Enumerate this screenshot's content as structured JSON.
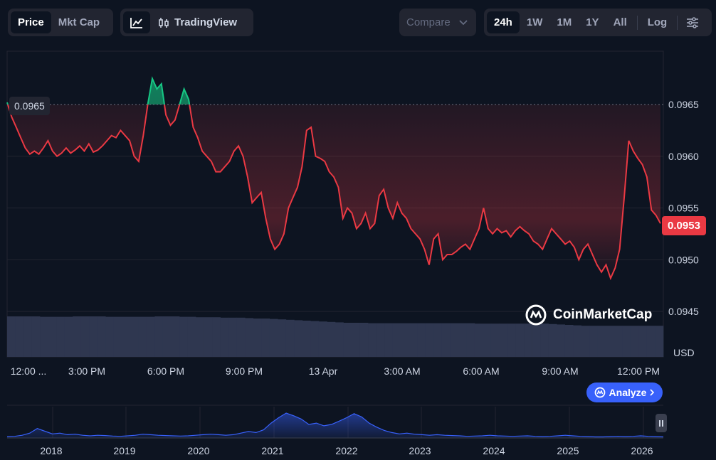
{
  "toolbar": {
    "metric_tabs": [
      "Price",
      "Mkt Cap"
    ],
    "tradingview_label": "TradingView",
    "compare_label": "Compare",
    "range_tabs": [
      "24h",
      "1W",
      "1M",
      "1Y",
      "All"
    ],
    "log_label": "Log",
    "active_metric": "Price",
    "active_range": "24h"
  },
  "chart_data": {
    "type": "line",
    "y_ticks": [
      "0.0965",
      "0.0960",
      "0.0955",
      "0.0950",
      "0.0945"
    ],
    "ylim": [
      0.0945,
      0.0965
    ],
    "currency": "USD",
    "reference_price": "0.0965",
    "current_price": "0.0953",
    "x_ticks": [
      "12:00 ...",
      "3:00 PM",
      "6:00 PM",
      "9:00 PM",
      "13 Apr",
      "3:00 AM",
      "6:00 AM",
      "9:00 AM",
      "12:00 PM"
    ],
    "colors": {
      "down": "#ea3943",
      "up": "#16c784",
      "volume": "#2f3750",
      "navigator": "#3861fb"
    },
    "series": [
      {
        "values": [
          0.09652,
          0.09638,
          0.09628,
          0.09618,
          0.09608,
          0.09602,
          0.09605,
          0.09602,
          0.09608,
          0.09615,
          0.09605,
          0.096,
          0.09603,
          0.09608,
          0.09603,
          0.09606,
          0.0961,
          0.09605,
          0.09612,
          0.09604,
          0.09606,
          0.0961,
          0.09615,
          0.0962,
          0.09618,
          0.09625,
          0.0962,
          0.09615,
          0.096,
          0.09595,
          0.0962,
          0.0965,
          0.09675,
          0.09665,
          0.0967,
          0.0964,
          0.0963,
          0.09635,
          0.0965,
          0.09665,
          0.09655,
          0.09628,
          0.09618,
          0.09605,
          0.096,
          0.09595,
          0.09585,
          0.09585,
          0.0959,
          0.09595,
          0.09605,
          0.0961,
          0.096,
          0.0958,
          0.09555,
          0.0956,
          0.09565,
          0.0954,
          0.0952,
          0.0951,
          0.09515,
          0.09525,
          0.0955,
          0.0956,
          0.0957,
          0.0959,
          0.09625,
          0.09628,
          0.096,
          0.09598,
          0.09595,
          0.09585,
          0.0958,
          0.0957,
          0.0954,
          0.0955,
          0.09545,
          0.0953,
          0.09535,
          0.09545,
          0.0953,
          0.09535,
          0.09562,
          0.09568,
          0.0955,
          0.0954,
          0.09555,
          0.09545,
          0.0954,
          0.0953,
          0.09525,
          0.0952,
          0.0951,
          0.09495,
          0.0952,
          0.09525,
          0.095,
          0.09505,
          0.09505,
          0.09508,
          0.09512,
          0.09515,
          0.0951,
          0.0952,
          0.0953,
          0.0955,
          0.0953,
          0.09525,
          0.0953,
          0.09526,
          0.09528,
          0.09522,
          0.09528,
          0.09532,
          0.09528,
          0.09525,
          0.09518,
          0.09515,
          0.0951,
          0.0952,
          0.0953,
          0.09525,
          0.0952,
          0.09515,
          0.09518,
          0.09512,
          0.095,
          0.0951,
          0.09515,
          0.09505,
          0.09495,
          0.09488,
          0.09495,
          0.09482,
          0.09492,
          0.0951,
          0.0956,
          0.09615,
          0.09605,
          0.09598,
          0.09592,
          0.0958,
          0.09548,
          0.09543,
          0.09535
        ]
      },
      {
        "name": "Volume",
        "values": [
          0.95,
          0.95,
          0.95,
          0.95,
          0.94,
          0.94,
          0.94,
          0.94,
          0.95,
          0.95,
          0.95,
          0.95,
          0.94,
          0.94,
          0.94,
          0.94,
          0.94,
          0.94,
          0.95,
          0.95,
          0.95,
          0.94,
          0.94,
          0.93,
          0.93,
          0.93,
          0.92,
          0.92,
          0.92,
          0.91,
          0.9,
          0.9,
          0.89,
          0.88,
          0.87,
          0.86,
          0.85,
          0.84,
          0.83,
          0.82,
          0.81,
          0.8,
          0.8,
          0.8,
          0.79,
          0.79,
          0.79,
          0.79,
          0.79,
          0.79,
          0.79,
          0.79,
          0.79,
          0.79,
          0.79,
          0.79,
          0.79,
          0.78,
          0.78,
          0.78,
          0.78,
          0.78,
          0.78,
          0.78,
          0.78,
          0.78,
          0.77,
          0.76,
          0.75,
          0.74,
          0.73,
          0.73,
          0.73,
          0.73,
          0.73,
          0.73,
          0.73,
          0.73,
          0.73,
          0.73
        ]
      }
    ],
    "navigator": {
      "x_ticks": [
        "2018",
        "2019",
        "2020",
        "2021",
        "2022",
        "2023",
        "2024",
        "2025",
        "2026"
      ],
      "values": [
        0.05,
        0.06,
        0.1,
        0.18,
        0.35,
        0.25,
        0.15,
        0.18,
        0.12,
        0.14,
        0.1,
        0.08,
        0.1,
        0.09,
        0.07,
        0.06,
        0.08,
        0.1,
        0.14,
        0.12,
        0.1,
        0.09,
        0.08,
        0.07,
        0.08,
        0.1,
        0.12,
        0.14,
        0.12,
        0.1,
        0.12,
        0.18,
        0.24,
        0.2,
        0.3,
        0.55,
        0.75,
        0.92,
        0.82,
        0.7,
        0.5,
        0.55,
        0.45,
        0.5,
        0.62,
        0.75,
        0.9,
        0.78,
        0.55,
        0.4,
        0.28,
        0.2,
        0.15,
        0.18,
        0.14,
        0.12,
        0.1,
        0.12,
        0.1,
        0.09,
        0.08,
        0.06,
        0.07,
        0.08,
        0.1,
        0.08,
        0.07,
        0.06,
        0.07,
        0.08,
        0.06,
        0.05,
        0.06,
        0.08,
        0.1,
        0.08,
        0.06,
        0.05,
        0.04,
        0.04,
        0.05,
        0.06,
        0.05,
        0.06,
        0.08,
        0.06,
        0.05,
        0.04
      ]
    }
  },
  "watermark_text": "CoinMarketCap",
  "analyze_label": "Analyze",
  "icons": {
    "line_chart": "line-chart-icon",
    "candles": "candlestick-icon",
    "settings": "settings-sliders-icon",
    "chevron": "chevron-down-icon",
    "pause": "pause-icon"
  }
}
